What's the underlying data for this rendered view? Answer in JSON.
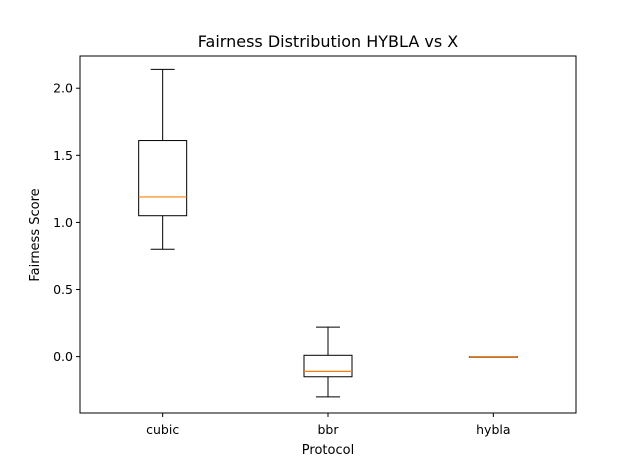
{
  "chart_data": {
    "type": "box",
    "title": "Fairness Distribution HYBLA vs X",
    "xlabel": "Protocol",
    "ylabel": "Fairness Score",
    "ylim": [
      -0.42,
      2.24
    ],
    "yticks": [
      0.0,
      0.5,
      1.0,
      1.5,
      2.0
    ],
    "ytick_labels": [
      "0.0",
      "0.5",
      "1.0",
      "1.5",
      "2.0"
    ],
    "grid": false,
    "categories": [
      "cubic",
      "bbr",
      "hybla"
    ],
    "boxes": [
      {
        "name": "cubic",
        "whisker_low": 0.8,
        "q1": 1.05,
        "median": 1.19,
        "q3": 1.61,
        "whisker_high": 2.14
      },
      {
        "name": "bbr",
        "whisker_low": -0.3,
        "q1": -0.15,
        "median": -0.11,
        "q3": 0.01,
        "whisker_high": 0.22
      },
      {
        "name": "hybla",
        "whisker_low": 0.0,
        "q1": 0.0,
        "median": 0.0,
        "q3": 0.0,
        "whisker_high": 0.0
      }
    ],
    "colors": {
      "box": "#000000",
      "median": "#ff7f0e",
      "axes": "#000000"
    }
  }
}
